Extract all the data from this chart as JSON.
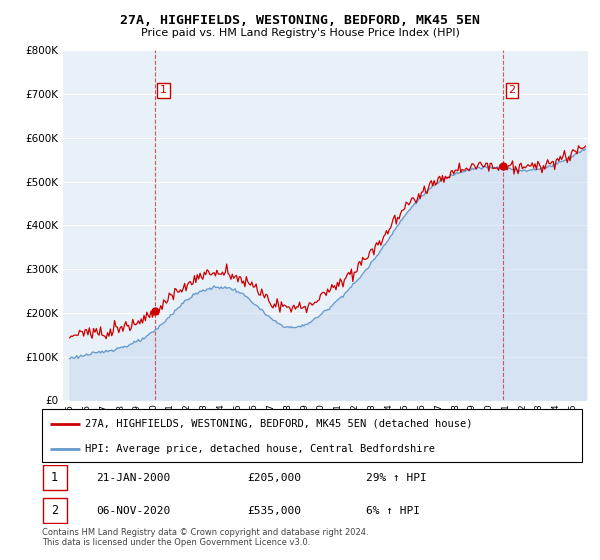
{
  "title": "27A, HIGHFIELDS, WESTONING, BEDFORD, MK45 5EN",
  "subtitle": "Price paid vs. HM Land Registry's House Price Index (HPI)",
  "property_label": "27A, HIGHFIELDS, WESTONING, BEDFORD, MK45 5EN (detached house)",
  "hpi_label": "HPI: Average price, detached house, Central Bedfordshire",
  "footnote": "Contains HM Land Registry data © Crown copyright and database right 2024.\nThis data is licensed under the Open Government Licence v3.0.",
  "transaction1_date": "21-JAN-2000",
  "transaction1_price": "£205,000",
  "transaction1_hpi": "29% ↑ HPI",
  "transaction2_date": "06-NOV-2020",
  "transaction2_price": "£535,000",
  "transaction2_hpi": "6% ↑ HPI",
  "ylim": [
    0,
    800000
  ],
  "yticks": [
    0,
    100000,
    200000,
    300000,
    400000,
    500000,
    600000,
    700000,
    800000
  ],
  "background_color": "#ffffff",
  "plot_bg_color": "#e8f0f8",
  "grid_color": "#ffffff",
  "property_color": "#cc0000",
  "hpi_color": "#6699cc",
  "hpi_fill_color": "#c5d8ef",
  "transaction1_x": 2000.07,
  "transaction1_y": 205000,
  "transaction2_x": 2020.85,
  "transaction2_y": 535000,
  "vline1_x": 2000.07,
  "vline2_x": 2020.85,
  "years_start": 1995,
  "years_end": 2025,
  "xlim_left": 1994.6,
  "xlim_right": 2025.9
}
